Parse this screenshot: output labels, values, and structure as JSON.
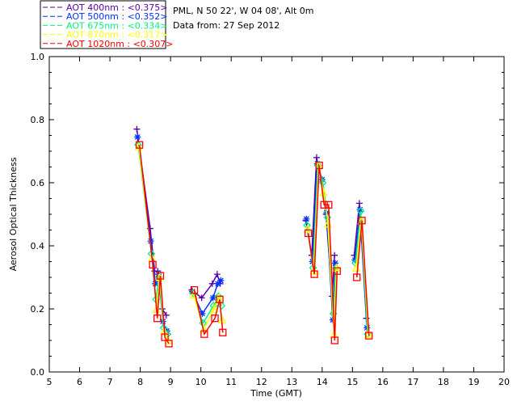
{
  "chart_data": {
    "type": "line",
    "info_line1": "PML, N 50 22', W 04 08', Alt 0m",
    "info_line2": "Data from: 27 Sep 2012",
    "xlabel": "Time (GMT)",
    "ylabel": "Aerosol Optical Thickness",
    "xlim": [
      5,
      20
    ],
    "ylim": [
      0,
      1.0
    ],
    "xticks": [
      "5",
      "6",
      "7",
      "8",
      "9",
      "10",
      "11",
      "12",
      "13",
      "14",
      "15",
      "16",
      "17",
      "18",
      "19",
      "20"
    ],
    "yticks": [
      "0.0",
      "0.2",
      "0.4",
      "0.6",
      "0.8",
      "1.0"
    ],
    "legend_placement": "top-left-outside",
    "x": [
      7.93,
      8.37,
      8.52,
      8.62,
      8.77,
      8.9,
      9.74,
      10.07,
      10.42,
      10.58,
      10.68,
      13.5,
      13.7,
      13.86,
      14.02,
      14.17,
      14.37,
      14.45,
      15.1,
      15.27,
      15.5
    ],
    "series": [
      {
        "name": "AOT  400nm : <0.375>",
        "color": "#5a00a8",
        "marker": "plus",
        "values": [
          0.77,
          0.455,
          0.32,
          0.32,
          0.2,
          0.18,
          0.26,
          0.235,
          0.28,
          0.31,
          0.28,
          0.48,
          0.37,
          0.68,
          0.61,
          0.5,
          0.24,
          0.37,
          0.37,
          0.535,
          0.17
        ]
      },
      {
        "name": "AOT  500nm : <0.352>",
        "color": "#0030ff",
        "marker": "asterisk",
        "values": [
          0.745,
          0.415,
          0.28,
          0.31,
          0.16,
          0.13,
          0.255,
          0.185,
          0.235,
          0.28,
          0.29,
          0.485,
          0.35,
          0.66,
          0.61,
          0.505,
          0.165,
          0.345,
          0.355,
          0.515,
          0.14
        ]
      },
      {
        "name": "AOT  675nm : <0.334>",
        "color": "#00f080",
        "marker": "diamond",
        "values": [
          0.72,
          0.375,
          0.23,
          0.3,
          0.14,
          0.12,
          0.25,
          0.155,
          0.21,
          0.24,
          0.21,
          0.465,
          0.33,
          0.655,
          0.6,
          0.49,
          0.185,
          0.33,
          0.345,
          0.51,
          0.12
        ]
      },
      {
        "name": "AOT  870nm : <0.317>",
        "color": "#ffff00",
        "marker": "triangle",
        "values": [
          0.715,
          0.36,
          0.2,
          0.3,
          0.13,
          0.1,
          0.245,
          0.135,
          0.2,
          0.235,
          0.165,
          0.455,
          0.32,
          0.655,
          0.57,
          0.47,
          0.12,
          0.33,
          0.33,
          0.48,
          0.12
        ]
      },
      {
        "name": "AOT 1020nm : <0.307>",
        "color": "#ff0000",
        "marker": "square",
        "values": [
          0.72,
          0.34,
          0.17,
          0.305,
          0.11,
          0.09,
          0.26,
          0.12,
          0.17,
          0.23,
          0.125,
          0.44,
          0.31,
          0.655,
          0.53,
          0.53,
          0.1,
          0.32,
          0.3,
          0.48,
          0.115
        ]
      }
    ]
  }
}
